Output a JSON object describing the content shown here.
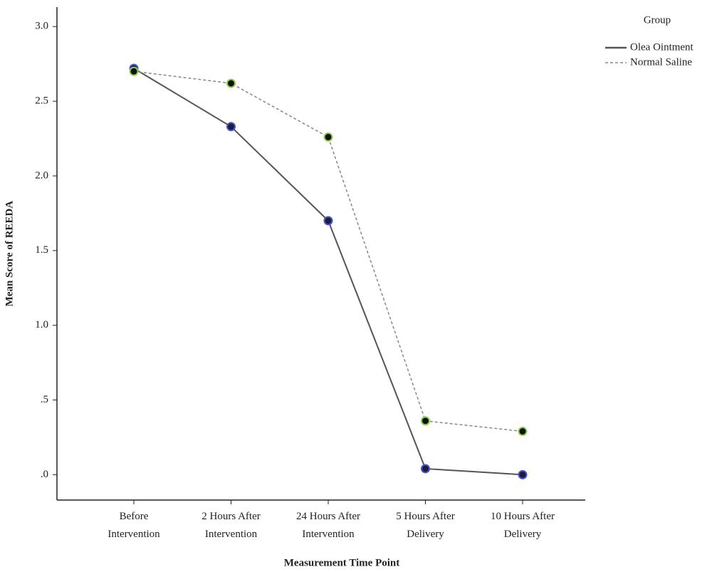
{
  "chart_data": {
    "type": "line",
    "x_label": "Measurement Time Point",
    "y_label": "Mean Score of REEDA",
    "legend_title": "Group",
    "categories": [
      "Before Intervention",
      "2 Hours After Intervention",
      "24 Hours After Intervention",
      "5 Hours After Delivery",
      "10 Hours After Delivery"
    ],
    "series": [
      {
        "name": "Olea Ointment",
        "color": "#555555",
        "dash": false,
        "marker_fill": "#1c1c3c",
        "marker_edge": "#4a55c8",
        "values": [
          2.72,
          2.33,
          1.7,
          0.04,
          0.0
        ]
      },
      {
        "name": "Normal Saline",
        "color": "#888888",
        "dash": true,
        "marker_fill": "#111111",
        "marker_edge": "#8ed04a",
        "values": [
          2.7,
          2.62,
          2.26,
          0.36,
          0.29
        ]
      }
    ],
    "ylim": [
      -0.17,
      3.13
    ],
    "yticks": [
      {
        "value": 3.0,
        "label": "3.0"
      },
      {
        "value": 2.5,
        "label": "2.5"
      },
      {
        "value": 2.0,
        "label": "2.0"
      },
      {
        "value": 1.5,
        "label": "1.5"
      },
      {
        "value": 1.0,
        "label": "1.0"
      },
      {
        "value": 0.5,
        "label": ".5"
      },
      {
        "value": 0.0,
        "label": ".0"
      }
    ],
    "legend_position": "top-right",
    "grid": false
  }
}
